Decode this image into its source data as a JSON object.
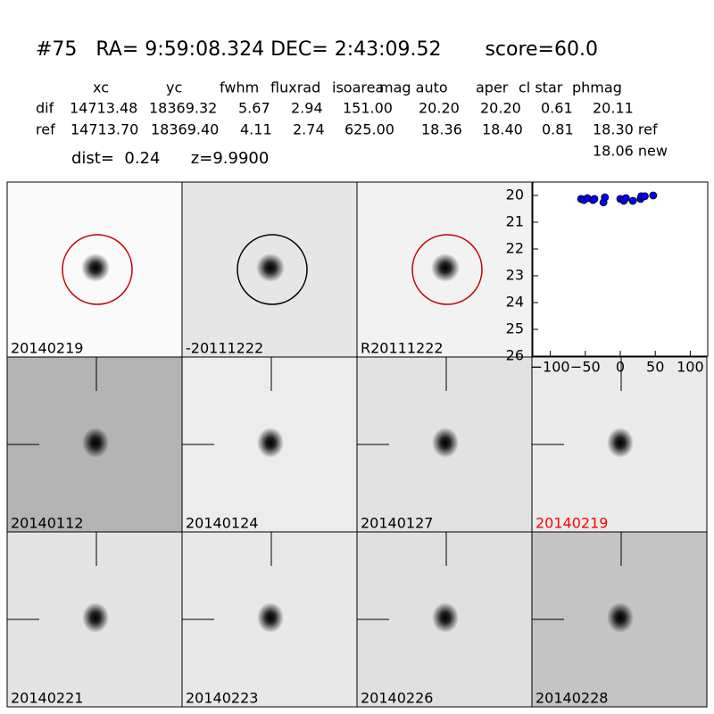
{
  "header": {
    "title": "#75   RA= 9:59:08.324 DEC= 2:43:09.52       score=60.0"
  },
  "table": {
    "columns": [
      "xc",
      "yc",
      "fwhm",
      "fluxrad",
      "isoarea",
      "mag auto",
      "aper",
      "cl star",
      "phmag"
    ],
    "rows": [
      [
        "dif",
        "14713.48",
        "18369.32",
        "5.67",
        "2.94",
        "151.00",
        "20.20",
        "20.20",
        "0.61",
        "20.11"
      ],
      [
        "ref",
        "14713.70",
        "18369.40",
        "4.11",
        "2.74",
        "625.00",
        "18.36",
        "18.40",
        "0.81",
        "18.30 ref"
      ]
    ],
    "extra": "18.06 new"
  },
  "stats": "dist=  0.24      z=9.9900",
  "panels": [
    {
      "label": "20140219",
      "color": "#000000"
    },
    {
      "label": "-20111222",
      "color": "#000000"
    },
    {
      "label": "R20111222",
      "color": "#000000"
    },
    {
      "label": "20140112",
      "color": "#000000"
    },
    {
      "label": "20140124",
      "color": "#000000"
    },
    {
      "label": "20140127",
      "color": "#000000"
    },
    {
      "label": "20140219",
      "color": "#ff0000"
    },
    {
      "label": "20140221",
      "color": "#000000"
    },
    {
      "label": "20140223",
      "color": "#000000"
    },
    {
      "label": "20140226",
      "color": "#000000"
    },
    {
      "label": "20140228",
      "color": "#000000"
    }
  ],
  "chart_data": {
    "type": "scatter",
    "color": "#0000ff",
    "x": [
      -56,
      -52,
      -47,
      -39,
      -37,
      -24,
      -22,
      0,
      5,
      8,
      18,
      29,
      30,
      35,
      47
    ],
    "values": [
      20.13,
      20.17,
      20.1,
      20.17,
      20.13,
      20.26,
      20.07,
      20.13,
      20.2,
      20.1,
      20.2,
      20.13,
      20.03,
      20.03,
      20.0
    ],
    "xlim": [
      -125,
      125
    ],
    "ylim": [
      26,
      19.5
    ],
    "xticks": [
      {
        "value": -100,
        "label": "−100"
      },
      {
        "value": -50,
        "label": "−50"
      },
      0,
      50,
      100
    ],
    "yticks": [
      20,
      21,
      22,
      23,
      24,
      25,
      26
    ]
  }
}
